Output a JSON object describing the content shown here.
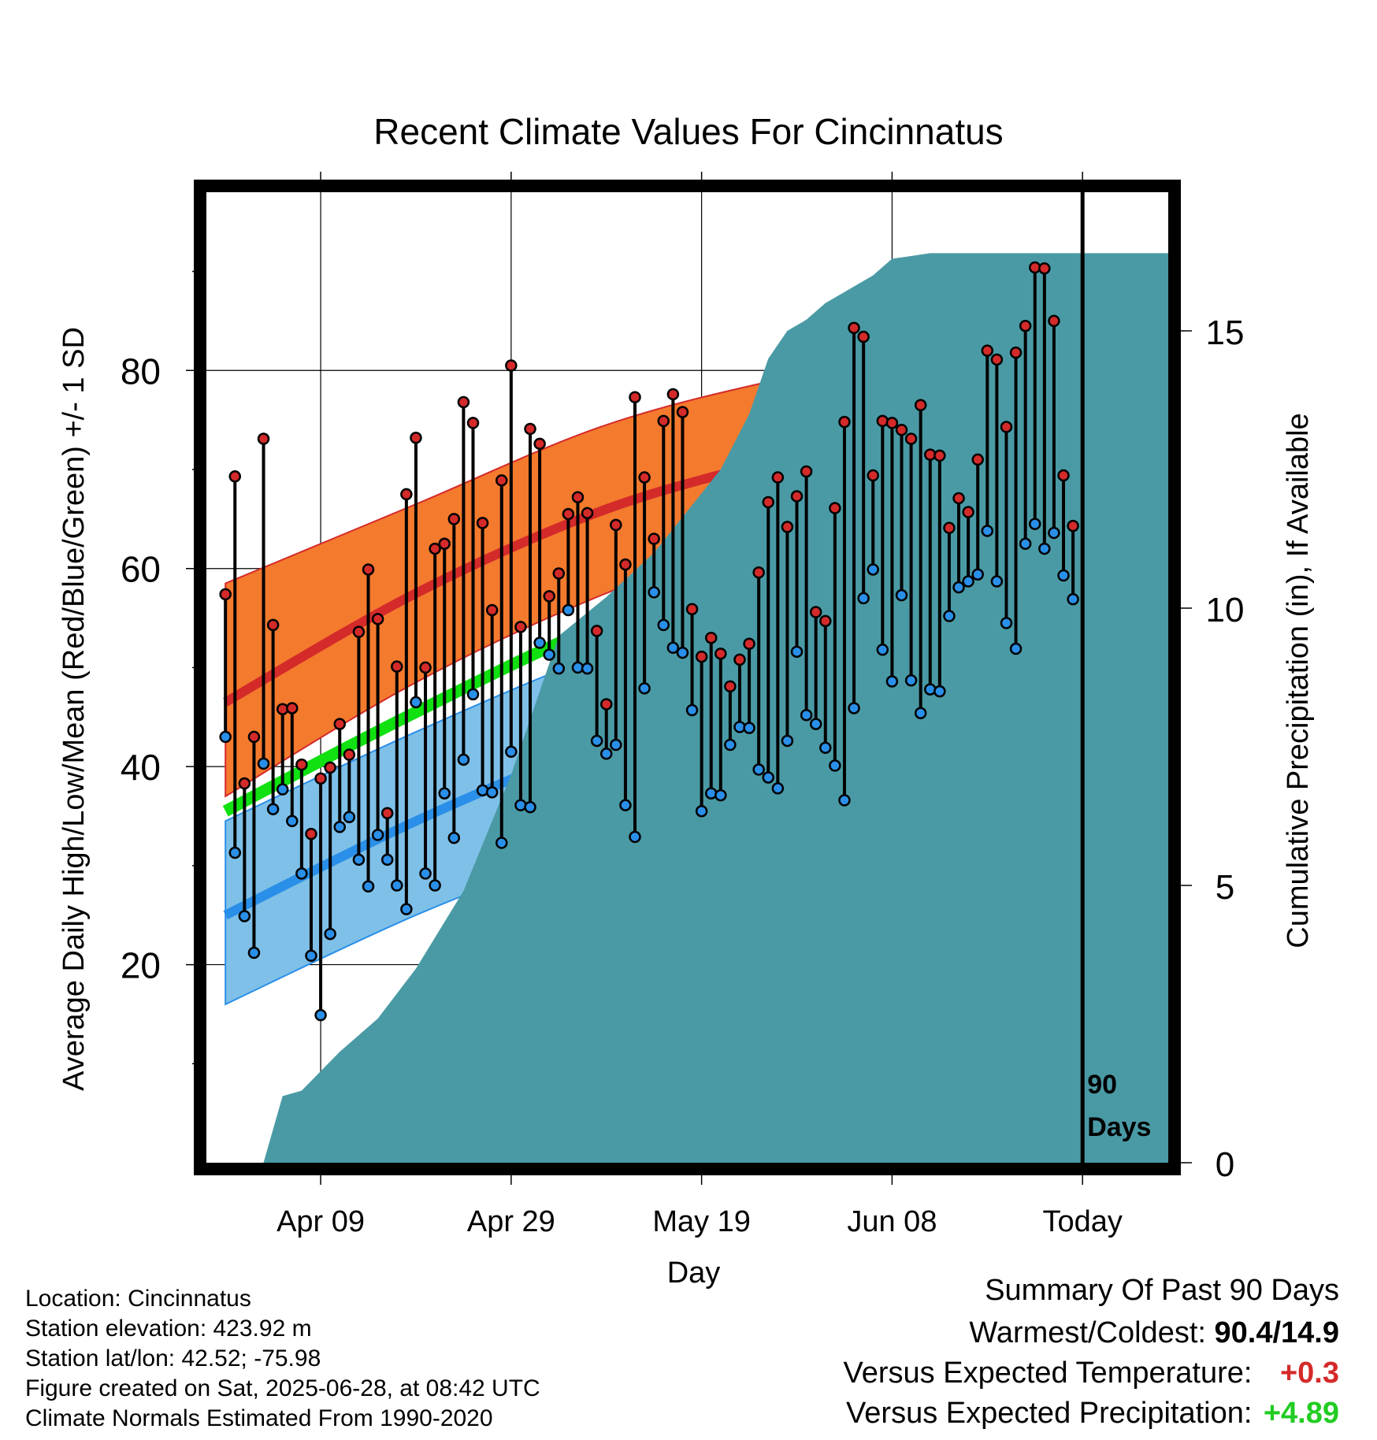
{
  "title": "Recent Climate Values For Cincinnatus",
  "ylabel_left": "Average Daily High/Low/Mean (Red/Blue/Green) +/- 1 SD",
  "ylabel_right": "Cumulative Precipitation (in), If Available",
  "xlabel": "Day",
  "today_marker": {
    "line1": "90",
    "line2": "Days"
  },
  "footer": [
    "Location: Cincinnatus",
    "Station elevation: 423.92 m",
    "Station lat/lon: 42.52; -75.98",
    "Figure created on Sat, 2025-06-28, at 08:42 UTC",
    "Climate Normals Estimated From 1990-2020"
  ],
  "summary": {
    "heading": "Summary Of Past 90 Days",
    "rows": [
      {
        "label": "Warmest/Coldest:",
        "value": "90.4/14.9",
        "color": "#000000"
      },
      {
        "label": "Versus Expected Temperature:",
        "value": "+0.3",
        "color": "#d42a2a"
      },
      {
        "label": "Versus Expected Precipitation:",
        "value": "+4.89",
        "color": "#22cc22"
      }
    ]
  },
  "colors": {
    "high_band": "#f47a2e",
    "high_mean": "#d42a2a",
    "low_band": "#7fc0e8",
    "low_mean": "#2a8fe8",
    "avg_mean": "#11e011",
    "precip": "#4a9aa5",
    "high_dot": "#d42a2a",
    "low_dot": "#2a8fe8"
  },
  "chart_data": {
    "type": "line",
    "x_axis": {
      "unit": "day",
      "range": [
        -92,
        9
      ],
      "ticks": [
        -80,
        -60,
        -40,
        -20,
        0
      ],
      "tick_labels": [
        "Apr 09",
        "Apr 29",
        "May 19",
        "Jun 08",
        "Today"
      ]
    },
    "y_left": {
      "range": [
        0,
        98
      ],
      "ticks": [
        20,
        40,
        60,
        80
      ]
    },
    "y_right": {
      "range": [
        0,
        17.5
      ],
      "ticks": [
        0,
        5,
        10,
        15
      ]
    },
    "normals": {
      "x": [
        -90,
        -70,
        -50,
        -30,
        -10,
        9
      ],
      "high_mean": [
        46.5,
        57.5,
        66,
        71.5,
        76.5,
        79
      ],
      "high_sd_upper": [
        58.5,
        66.5,
        74.5,
        79.5,
        83,
        85.2
      ],
      "high_sd_lower": [
        37,
        48.5,
        57.5,
        64,
        69,
        72.5
      ],
      "avg_mean": [
        35.5,
        45.5,
        54.5,
        60.5,
        65,
        68
      ],
      "low_mean": [
        25,
        34.5,
        42.5,
        48.5,
        54,
        57
      ],
      "low_sd_upper": [
        34.5,
        43.5,
        51.5,
        57,
        61,
        63
      ],
      "low_sd_lower": [
        16,
        25,
        32.5,
        40,
        46,
        51
      ]
    },
    "daily": {
      "start_day": -90,
      "high": [
        57.4,
        69.3,
        38.3,
        43.0,
        73.1,
        54.3,
        45.8,
        45.9,
        40.2,
        33.2,
        38.8,
        39.9,
        44.3,
        41.2,
        53.6,
        59.9,
        54.9,
        35.3,
        50.1,
        67.5,
        73.2,
        50.0,
        62.0,
        62.5,
        65.0,
        76.8,
        74.7,
        64.6,
        55.8,
        68.9,
        80.5,
        54.1,
        74.1,
        72.6,
        57.2,
        59.5,
        65.5,
        67.2,
        65.6,
        53.7,
        46.3,
        64.4,
        60.4,
        77.3,
        69.2,
        63.0,
        74.9,
        77.6,
        75.8,
        55.9,
        51.1,
        53.0,
        51.4,
        48.1,
        50.8,
        52.4,
        59.6,
        66.7,
        69.2,
        64.2,
        67.3,
        69.8,
        55.6,
        54.7,
        66.1,
        74.8,
        84.3,
        83.4,
        69.4,
        74.9,
        74.7,
        74.0,
        73.1,
        76.5,
        71.5,
        71.4,
        64.1,
        67.1,
        65.7,
        71.0,
        82.0,
        81.1,
        74.3,
        81.8,
        84.5,
        90.4,
        90.3,
        85.0,
        69.4,
        64.3
      ],
      "low": [
        43.0,
        31.3,
        24.9,
        21.2,
        40.3,
        35.7,
        37.7,
        34.5,
        29.2,
        20.9,
        14.9,
        23.1,
        33.9,
        34.9,
        30.6,
        27.9,
        33.1,
        30.6,
        28.0,
        25.6,
        46.5,
        29.2,
        28.0,
        37.3,
        32.8,
        40.7,
        47.3,
        37.6,
        37.4,
        32.3,
        41.5,
        36.1,
        35.9,
        52.5,
        51.3,
        49.9,
        55.8,
        50.0,
        49.9,
        42.6,
        41.3,
        42.2,
        36.1,
        32.9,
        47.9,
        57.6,
        54.3,
        52.0,
        51.5,
        45.7,
        35.5,
        37.3,
        37.1,
        42.2,
        44.0,
        43.9,
        39.7,
        38.9,
        37.8,
        42.6,
        51.6,
        45.2,
        44.3,
        41.9,
        40.1,
        36.6,
        45.9,
        57.0,
        59.9,
        51.8,
        48.6,
        57.3,
        48.7,
        45.4,
        47.8,
        47.6,
        55.2,
        58.1,
        58.7,
        59.4,
        63.8,
        58.7,
        54.5,
        51.9,
        62.5,
        64.5,
        62.0,
        63.6,
        59.3,
        56.9
      ]
    },
    "precip_cumulative": {
      "x": [
        -91,
        -86,
        -84,
        -82,
        -78,
        -74,
        -70,
        -65,
        -60,
        -55,
        -50,
        -45,
        -38,
        -35,
        -33,
        -31,
        -29,
        -27,
        -26,
        -22,
        -20,
        -16,
        -10,
        -6,
        0,
        9
      ],
      "y": [
        0,
        0,
        1.2,
        1.3,
        2.0,
        2.6,
        3.5,
        4.9,
        7.0,
        9.5,
        10.2,
        11.0,
        12.5,
        13.5,
        14.5,
        15.0,
        15.2,
        15.5,
        15.6,
        16.0,
        16.3,
        16.4,
        16.4,
        16.4,
        16.4,
        16.4
      ]
    }
  }
}
